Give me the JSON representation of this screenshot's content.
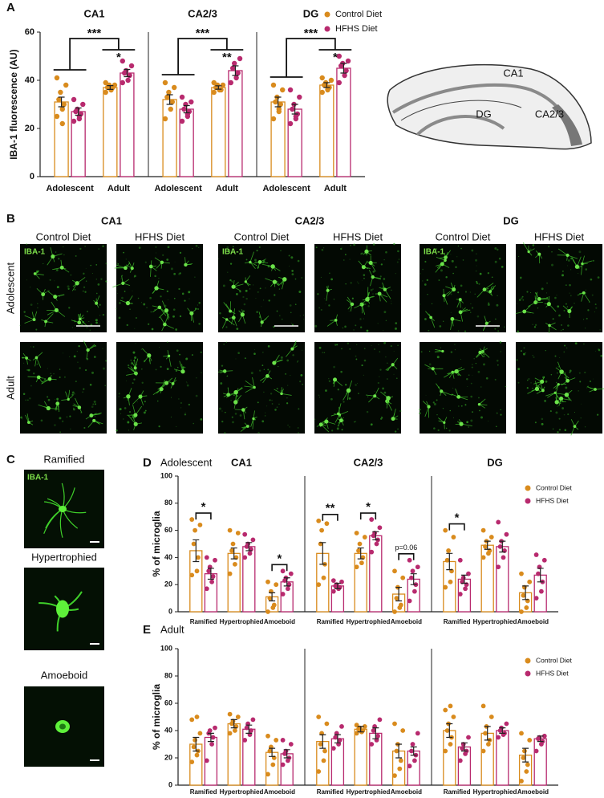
{
  "chart_data": [
    {
      "type": "bar",
      "panel": "A",
      "ylabel": "IBA-1 fluorescence (AU)",
      "ylim": [
        0,
        60
      ],
      "yticks": [
        0,
        20,
        40,
        60
      ],
      "series": [
        {
          "name": "Control Diet",
          "color": "#d98b1d"
        },
        {
          "name": "HFHS Diet",
          "color": "#b82a6e"
        }
      ],
      "groups": [
        {
          "title": "CA1",
          "categories": [
            "Adolescent",
            "Adult"
          ],
          "comparison": "***",
          "significance": [
            null,
            "*"
          ],
          "series": [
            {
              "values": [
                31,
                37
              ],
              "errors": [
                2,
                0.8
              ],
              "points": [
                [
                  25,
                  28,
                  30,
                  32,
                  35,
                  38,
                  41,
                  22
                ],
                [
                  35,
                  36,
                  37,
                  37,
                  38,
                  38,
                  39,
                  36
                ]
              ]
            },
            {
              "values": [
                27,
                43
              ],
              "errors": [
                1.5,
                1.5
              ],
              "points": [
                [
                  23,
                  25,
                  26,
                  27,
                  28,
                  30,
                  32,
                  24
                ],
                [
                  39,
                  40,
                  42,
                  43,
                  44,
                  46,
                  48
                ]
              ]
            }
          ]
        },
        {
          "title": "CA2/3",
          "categories": [
            "Adolescent",
            "Adult"
          ],
          "comparison": "***",
          "significance": [
            null,
            "**"
          ],
          "series": [
            {
              "values": [
                32,
                37
              ],
              "errors": [
                2,
                0.7
              ],
              "points": [
                [
                  24,
                  28,
                  31,
                  33,
                  35,
                  37,
                  39
                ],
                [
                  35,
                  36,
                  36,
                  37,
                  38,
                  38,
                  39
                ]
              ]
            },
            {
              "values": [
                28,
                44
              ],
              "errors": [
                1.5,
                2
              ],
              "points": [
                [
                  23,
                  25,
                  27,
                  28,
                  30,
                  31,
                  33,
                  26
                ],
                [
                  39,
                  41,
                  43,
                  45,
                  47,
                  49
                ]
              ]
            }
          ]
        },
        {
          "title": "DG",
          "categories": [
            "Adolescent",
            "Adult"
          ],
          "comparison": "***",
          "significance": [
            null,
            "*"
          ],
          "series": [
            {
              "values": [
                31,
                38
              ],
              "errors": [
                2,
                1
              ],
              "points": [
                [
                  24,
                  27,
                  30,
                  31,
                  33,
                  36,
                  38,
                  28
                ],
                [
                  35,
                  36,
                  37,
                  38,
                  39,
                  40,
                  41,
                  37
                ]
              ]
            },
            {
              "values": [
                28,
                45
              ],
              "errors": [
                2,
                2
              ],
              "points": [
                [
                  22,
                  24,
                  26,
                  28,
                  30,
                  33,
                  36,
                  25
                ],
                [
                  39,
                  42,
                  44,
                  46,
                  47,
                  48,
                  50
                ]
              ]
            }
          ]
        }
      ]
    },
    {
      "type": "bar",
      "panel": "D",
      "subtitle": "Adolescent",
      "ylabel": "% of microglia",
      "ylim": [
        0,
        100
      ],
      "yticks": [
        0,
        20,
        40,
        60,
        80,
        100
      ],
      "series": [
        {
          "name": "Control Diet",
          "color": "#d98b1d"
        },
        {
          "name": "HFHS Diet",
          "color": "#b82a6e"
        }
      ],
      "groups": [
        {
          "title": "CA1",
          "categories": [
            "Ramified",
            "Hypertrophied",
            "Amoeboid"
          ],
          "significance": [
            "*",
            null,
            "*"
          ],
          "series": [
            {
              "values": [
                45,
                43,
                11
              ],
              "errors": [
                8,
                4,
                3
              ],
              "points": [
                [
                  27,
                  30,
                  40,
                  50,
                  60,
                  64,
                  68
                ],
                [
                  28,
                  35,
                  40,
                  45,
                  50,
                  58,
                  60
                ],
                [
                  0,
                  3,
                  5,
                  10,
                  15,
                  20,
                  22
                ]
              ]
            },
            {
              "values": [
                28,
                48,
                22
              ],
              "errors": [
                4,
                3,
                3
              ],
              "points": [
                [
                  17,
                  22,
                  26,
                  30,
                  33,
                  38,
                  40
                ],
                [
                  40,
                  43,
                  46,
                  48,
                  50,
                  53,
                  57
                ],
                [
                  13,
                  17,
                  20,
                  23,
                  25,
                  28,
                  30
                ]
              ]
            }
          ]
        },
        {
          "title": "CA2/3",
          "categories": [
            "Ramified",
            "Hypertrophied",
            "Amoeboid"
          ],
          "significance": [
            "**",
            "*",
            "p=0.06"
          ],
          "series": [
            {
              "values": [
                43,
                43,
                13
              ],
              "errors": [
                8,
                4,
                5
              ],
              "points": [
                [
                  20,
                  25,
                  35,
                  50,
                  60,
                  65,
                  67
                ],
                [
                  33,
                  36,
                  40,
                  45,
                  50,
                  55,
                  58
                ],
                [
                  0,
                  3,
                  5,
                  10,
                  18,
                  25,
                  30
                ]
              ]
            },
            {
              "values": [
                19,
                56,
                24
              ],
              "errors": [
                2,
                3,
                4
              ],
              "points": [
                [
                  15,
                  17,
                  18,
                  19,
                  20,
                  22,
                  23
                ],
                [
                  44,
                  50,
                  53,
                  56,
                  58,
                  62,
                  68
                ],
                [
                  8,
                  15,
                  20,
                  25,
                  30,
                  33,
                  38
                ]
              ]
            }
          ]
        },
        {
          "title": "DG",
          "categories": [
            "Ramified",
            "Hypertrophied",
            "Amoeboid"
          ],
          "significance": [
            "*",
            null,
            null
          ],
          "series": [
            {
              "values": [
                37,
                49,
                14
              ],
              "errors": [
                6,
                3,
                5
              ],
              "points": [
                [
                  18,
                  22,
                  30,
                  38,
                  45,
                  55,
                  60
                ],
                [
                  40,
                  43,
                  45,
                  48,
                  52,
                  55,
                  60
                ],
                [
                  0,
                  3,
                  8,
                  12,
                  18,
                  22,
                  28
                ]
              ]
            },
            {
              "values": [
                24,
                48,
                27
              ],
              "errors": [
                3,
                4,
                5
              ],
              "points": [
                [
                  13,
                  17,
                  20,
                  22,
                  25,
                  28,
                  38
                ],
                [
                  33,
                  40,
                  45,
                  48,
                  52,
                  57,
                  66
                ],
                [
                  10,
                  15,
                  22,
                  28,
                  33,
                  38,
                  42
                ]
              ]
            }
          ]
        }
      ]
    },
    {
      "type": "bar",
      "panel": "E",
      "subtitle": "Adult",
      "ylabel": "% of microglia",
      "ylim": [
        0,
        100
      ],
      "yticks": [
        0,
        20,
        40,
        60,
        80,
        100
      ],
      "series": [
        {
          "name": "Control Diet",
          "color": "#d98b1d"
        },
        {
          "name": "HFHS Diet",
          "color": "#b82a6e"
        }
      ],
      "groups": [
        {
          "categories": [
            "Ramified",
            "Hypertrophied",
            "Amoeboid"
          ],
          "series": [
            {
              "values": [
                30,
                45,
                24
              ],
              "errors": [
                5,
                3,
                3
              ],
              "points": [
                [
                  17,
                  22,
                  25,
                  28,
                  33,
                  38,
                  48,
                  50
                ],
                [
                  38,
                  40,
                  43,
                  45,
                  47,
                  50,
                  52
                ],
                [
                  8,
                  15,
                  20,
                  25,
                  28,
                  33,
                  36
                ]
              ]
            },
            {
              "values": [
                35,
                41,
                23
              ],
              "errors": [
                3,
                3,
                3
              ],
              "points": [
                [
                  18,
                  30,
                  35,
                  38,
                  40,
                  42
                ],
                [
                  33,
                  37,
                  40,
                  42,
                  45,
                  48
                ],
                [
                  15,
                  18,
                  20,
                  23,
                  25,
                  30,
                  33
                ]
              ]
            }
          ]
        },
        {
          "categories": [
            "Ramified",
            "Hypertrophied",
            "Amoeboid"
          ],
          "series": [
            {
              "values": [
                32,
                41,
                25
              ],
              "errors": [
                5,
                2,
                5
              ],
              "points": [
                [
                  10,
                  18,
                  25,
                  30,
                  38,
                  45,
                  50
                ],
                [
                  38,
                  39,
                  40,
                  41,
                  42,
                  43,
                  44
                ],
                [
                  7,
                  12,
                  18,
                  25,
                  30,
                  40,
                  45
                ]
              ]
            },
            {
              "values": [
                34,
                38,
                25
              ],
              "errors": [
                3,
                4,
                3
              ],
              "points": [
                [
                  27,
                  30,
                  33,
                  35,
                  38,
                  43
                ],
                [
                  30,
                  33,
                  36,
                  40,
                  43,
                  48
                ],
                [
                  14,
                  18,
                  22,
                  25,
                  30,
                  38
                ]
              ]
            }
          ]
        },
        {
          "categories": [
            "Ramified",
            "Hypertrophied",
            "Amoeboid"
          ],
          "series": [
            {
              "values": [
                40,
                38,
                22
              ],
              "errors": [
                5,
                5,
                5
              ],
              "points": [
                [
                  25,
                  30,
                  35,
                  40,
                  45,
                  50,
                  55,
                  58
                ],
                [
                  25,
                  30,
                  33,
                  38,
                  43,
                  50,
                  58
                ],
                [
                  3,
                  10,
                  15,
                  20,
                  25,
                  33,
                  38
                ]
              ]
            },
            {
              "values": [
                28,
                40,
                34
              ],
              "errors": [
                3,
                2,
                2
              ],
              "points": [
                [
                  18,
                  23,
                  25,
                  27,
                  30,
                  35
                ],
                [
                  35,
                  37,
                  38,
                  40,
                  42,
                  45
                ],
                [
                  25,
                  30,
                  32,
                  34,
                  35,
                  36
                ]
              ]
            }
          ]
        }
      ]
    }
  ],
  "diagram": {
    "labels": [
      "CA1",
      "DG",
      "CA2/3"
    ]
  },
  "panel_b": {
    "label": "B",
    "stain": "IBA-1",
    "rows": [
      "Adolescent",
      "Adult"
    ],
    "regions": [
      {
        "title": "CA1",
        "columns": [
          "Control Diet",
          "HFHS Diet"
        ]
      },
      {
        "title": "CA2/3",
        "columns": [
          "Control Diet",
          "HFHS Diet"
        ]
      },
      {
        "title": "DG",
        "columns": [
          "Control Diet",
          "HFHS Diet"
        ]
      }
    ]
  },
  "panel_c": {
    "label": "C",
    "stain": "IBA-1",
    "morphologies": [
      "Ramified",
      "Hypertrophied",
      "Amoeboid"
    ]
  }
}
